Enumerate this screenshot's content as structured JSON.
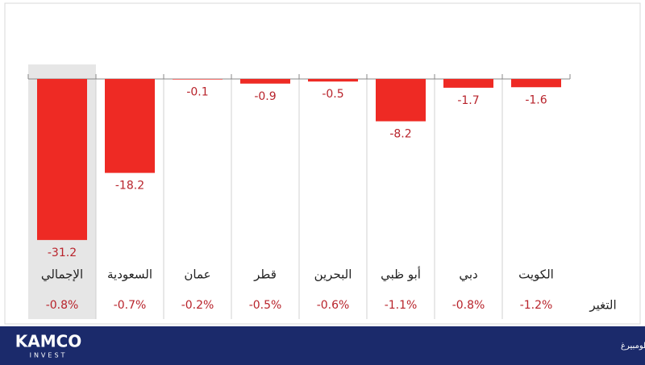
{
  "chart_data": {
    "type": "bar",
    "categories": [
      "الإجمالي",
      "السعودية",
      "عمان",
      "قطر",
      "البحرين",
      "أبو ظبي",
      "دبي",
      "الكويت"
    ],
    "values": [
      -31.2,
      -18.2,
      -0.1,
      -0.9,
      -0.5,
      -8.2,
      -1.7,
      -1.6
    ],
    "color": "#ee2a24",
    "ylim": [
      -32,
      0
    ],
    "change_label": "التغير",
    "changes": [
      "-0.8%",
      "-0.7%",
      "-0.2%",
      "-0.5%",
      "-0.6%",
      "-1.1%",
      "-0.8%",
      "-1.2%"
    ]
  },
  "footer": {
    "logo": "KAMCO",
    "logo_sub": "INVEST",
    "source": "المصدر: بحوث كامكو إنفست، أسواق الأسهم الخليجية، بلومبيرغ"
  }
}
